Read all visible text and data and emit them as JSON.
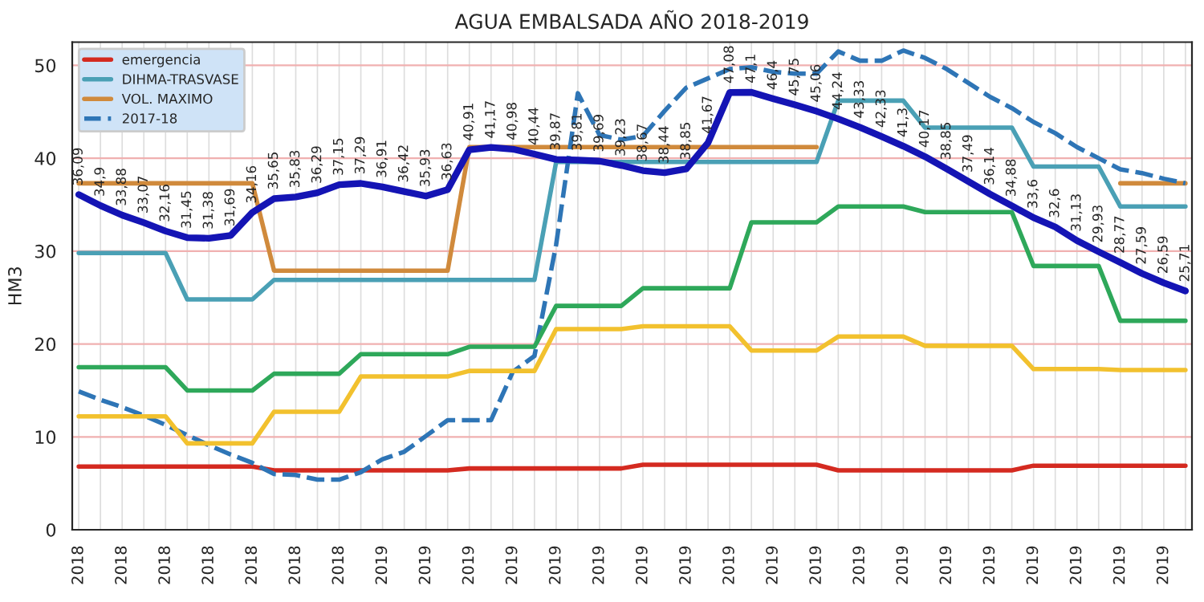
{
  "chart_data": {
    "type": "line",
    "title": "AGUA EMBALSADA AÑO 2018-2019",
    "ylabel": "HM3",
    "categories": [
      "2018",
      null,
      "2018",
      null,
      "2018",
      null,
      "2018",
      null,
      "2018",
      null,
      "2018",
      null,
      "2018",
      null,
      "2019",
      null,
      "2019",
      null,
      "2019",
      null,
      "2019",
      null,
      "2019",
      null,
      "2019",
      null,
      "2019",
      null,
      "2019",
      null,
      "2019",
      null,
      "2019",
      null,
      "2019",
      null,
      "2019",
      null,
      "2019",
      null,
      "2019",
      null,
      "2019",
      null,
      "2019",
      null,
      "2019",
      null,
      "2019",
      null,
      "2019",
      null
    ],
    "series": [
      {
        "name": "emergencia",
        "color": "#d42a20",
        "values": [
          6.8,
          6.8,
          6.8,
          6.8,
          6.8,
          6.8,
          6.8,
          6.8,
          6.8,
          6.4,
          6.4,
          6.4,
          6.4,
          6.4,
          6.4,
          6.4,
          6.4,
          6.4,
          6.6,
          6.6,
          6.6,
          6.6,
          6.6,
          6.6,
          6.6,
          6.6,
          7.0,
          7.0,
          7.0,
          7.0,
          7.0,
          7.0,
          7.0,
          7.0,
          7.0,
          6.4,
          6.4,
          6.4,
          6.4,
          6.4,
          6.4,
          6.4,
          6.4,
          6.4,
          6.9,
          6.9,
          6.9,
          6.9,
          6.9,
          6.9,
          6.9,
          6.9
        ]
      },
      {
        "name": "DIHMA-TRASVASE",
        "color": "#4aa0b5",
        "values": [
          29.8,
          29.8,
          29.8,
          29.8,
          29.8,
          24.8,
          24.8,
          24.8,
          24.8,
          26.9,
          26.9,
          26.9,
          26.9,
          26.9,
          26.9,
          26.9,
          26.9,
          26.9,
          26.9,
          26.9,
          26.9,
          26.9,
          39.6,
          39.6,
          39.6,
          39.6,
          39.6,
          39.6,
          39.6,
          39.6,
          39.6,
          39.6,
          39.6,
          39.6,
          39.6,
          46.2,
          46.2,
          46.2,
          46.2,
          43.3,
          43.3,
          43.3,
          43.3,
          43.3,
          39.1,
          39.1,
          39.1,
          39.1,
          34.8,
          34.8,
          34.8,
          34.8
        ]
      },
      {
        "name": "VOL. MAXIMO",
        "color": "#d08a3c",
        "values": [
          37.3,
          37.3,
          37.3,
          37.3,
          37.3,
          37.3,
          37.3,
          37.3,
          37.3,
          27.9,
          27.9,
          27.9,
          27.9,
          27.9,
          27.9,
          27.9,
          27.9,
          27.9,
          41.2,
          41.2,
          41.2,
          41.2,
          41.2,
          41.2,
          41.2,
          41.2,
          41.2,
          41.2,
          41.2,
          41.2,
          41.2,
          41.2,
          41.2,
          41.2,
          41.2,
          null,
          null,
          null,
          null,
          null,
          null,
          null,
          null,
          null,
          null,
          null,
          null,
          null,
          37.3,
          37.3,
          37.3,
          37.3
        ]
      },
      {
        "name": "2017-18",
        "color": "#2e75b6",
        "line_style": "dashed",
        "values": [
          14.9,
          14.0,
          13.2,
          12.3,
          11.3,
          10.2,
          9.1,
          8.1,
          7.2,
          6.0,
          5.9,
          5.4,
          5.4,
          6.2,
          7.6,
          8.4,
          10.1,
          11.8,
          11.8,
          11.8,
          17.0,
          18.7,
          30.7,
          47.0,
          42.5,
          42.0,
          42.4,
          45.1,
          47.6,
          48.6,
          49.6,
          49.8,
          49.3,
          49.1,
          49.1,
          51.5,
          50.5,
          50.5,
          51.6,
          50.8,
          49.6,
          48.1,
          46.6,
          45.4,
          43.9,
          42.7,
          41.2,
          40.0,
          38.8,
          38.4,
          37.8,
          37.3
        ]
      },
      {
        "color": "#2ea85a",
        "values": [
          17.5,
          17.5,
          17.5,
          17.5,
          17.5,
          15.0,
          15.0,
          15.0,
          15.0,
          16.8,
          16.8,
          16.8,
          16.8,
          18.9,
          18.9,
          18.9,
          18.9,
          18.9,
          19.7,
          19.7,
          19.7,
          19.7,
          24.1,
          24.1,
          24.1,
          24.1,
          26.0,
          26.0,
          26.0,
          26.0,
          26.0,
          33.1,
          33.1,
          33.1,
          33.1,
          34.8,
          34.8,
          34.8,
          34.8,
          34.2,
          34.2,
          34.2,
          34.2,
          34.2,
          28.4,
          28.4,
          28.4,
          28.4,
          22.5,
          22.5,
          22.5,
          22.5
        ]
      },
      {
        "color": "#f2c12e",
        "values": [
          12.2,
          12.2,
          12.2,
          12.2,
          12.2,
          9.3,
          9.3,
          9.3,
          9.3,
          12.7,
          12.7,
          12.7,
          12.7,
          16.5,
          16.5,
          16.5,
          16.5,
          16.5,
          17.1,
          17.1,
          17.1,
          17.1,
          21.6,
          21.6,
          21.6,
          21.6,
          21.9,
          21.9,
          21.9,
          21.9,
          21.9,
          19.3,
          19.3,
          19.3,
          19.3,
          20.8,
          20.8,
          20.8,
          20.8,
          19.8,
          19.8,
          19.8,
          19.8,
          19.8,
          17.3,
          17.3,
          17.3,
          17.3,
          17.2,
          17.2,
          17.2,
          17.2
        ]
      },
      {
        "color": "#1414b4",
        "values": [
          36.09,
          34.9,
          33.88,
          33.07,
          32.16,
          31.45,
          31.38,
          31.69,
          34.16,
          35.65,
          35.83,
          36.29,
          37.15,
          37.29,
          36.91,
          36.42,
          35.93,
          36.63,
          40.91,
          41.17,
          40.98,
          40.44,
          39.87,
          39.81,
          39.69,
          39.23,
          38.67,
          38.44,
          38.85,
          41.67,
          47.08,
          47.1,
          46.4,
          45.75,
          45.06,
          44.24,
          43.33,
          42.33,
          41.3,
          40.17,
          38.85,
          37.49,
          36.14,
          34.88,
          33.6,
          32.6,
          31.13,
          29.93,
          28.77,
          27.59,
          26.59,
          25.71
        ],
        "value_labels": [
          "36,09",
          "34,9",
          "33,88",
          "33,07",
          "32,16",
          "31,45",
          "31,38",
          "31,69",
          "34,16",
          "35,65",
          "35,83",
          "36,29",
          "37,15",
          "37,29",
          "36,91",
          "36,42",
          "35,93",
          "36,63",
          "40,91",
          "41,17",
          "40,98",
          "40,44",
          "39,87",
          "39,81",
          "39,69",
          "39,23",
          "38,67",
          "38,44",
          "38,85",
          "41,67",
          "47,08",
          "47,1",
          "46,4",
          "45,75",
          "45,06",
          "44,24",
          "43,33",
          "42,33",
          "41,3",
          "40,17",
          "38,85",
          "37,49",
          "36,14",
          "34,88",
          "33,6",
          "32,6",
          "31,13",
          "29,93",
          "28,77",
          "27,59",
          "26,59",
          "25,71"
        ]
      }
    ],
    "ylim": [
      0,
      52.5
    ],
    "yticks": [
      0,
      10,
      20,
      30,
      40,
      50
    ],
    "grid": true,
    "legend": "top left"
  }
}
